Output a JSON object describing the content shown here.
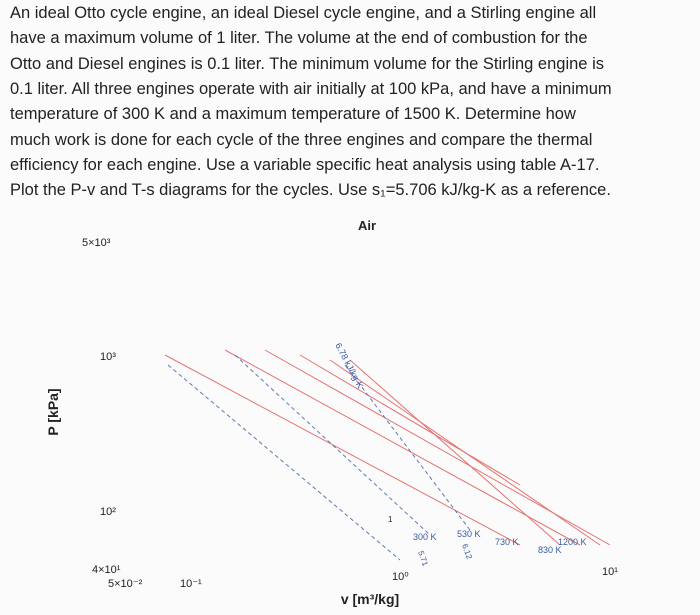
{
  "problem": {
    "lines": [
      "An ideal Otto cycle engine, an ideal Diesel cycle engine, and a Stirling engine all",
      "have a maximum volume of 1 liter. The volume at the end of combustion for the",
      "Otto and Diesel engines is 0.1 liter. The minimum volume for the Stirling engine is",
      "0.1 liter. All three engines operate with air initially at 100 kPa, and have a minimum",
      "temperature of 300 K and a maximum temperature of 1500 K. Determine how",
      "much work is done for each cycle of the three engines and compare the thermal",
      "efficiency for each engine. Use a variable specific heat analysis using table A-17.",
      "Plot the P-v and T-s diagrams for the cycles. Use s₁=5.706 kJ/kg-K as a reference."
    ]
  },
  "figure": {
    "title": "Air",
    "y_label": "P [kPa]",
    "x_label": "v [m³/kg]",
    "y_tick_labels": [
      "5×10³",
      "10³",
      "10²",
      "4×10¹"
    ],
    "x_tick_labels": [
      "5×10⁻²",
      "10⁻¹",
      "10⁰",
      "10¹"
    ],
    "annotations": [
      "6.78 kJ/kg-K",
      "1",
      "300 K",
      "5.71",
      "530 K",
      "6.12",
      "730 K",
      "830 K",
      "1200 K"
    ]
  }
}
